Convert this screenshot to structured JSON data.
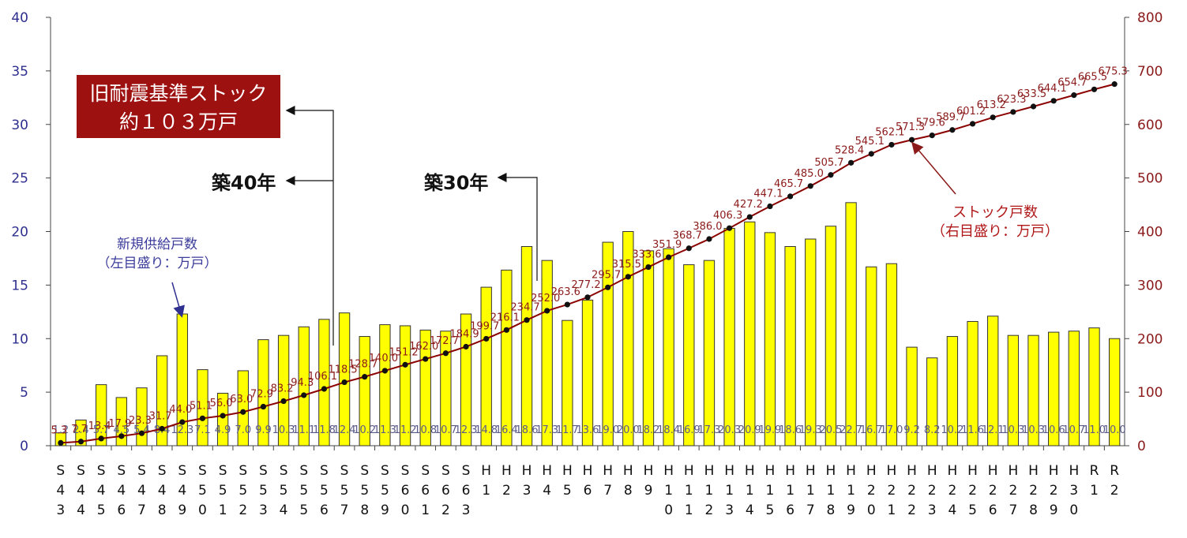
{
  "chart_data": {
    "type": "bar+line",
    "categories": [
      [
        "S",
        "4",
        "3"
      ],
      [
        "S",
        "4",
        "4"
      ],
      [
        "S",
        "4",
        "5"
      ],
      [
        "S",
        "4",
        "6"
      ],
      [
        "S",
        "4",
        "7"
      ],
      [
        "S",
        "4",
        "8"
      ],
      [
        "S",
        "4",
        "9"
      ],
      [
        "S",
        "5",
        "0"
      ],
      [
        "S",
        "5",
        "1"
      ],
      [
        "S",
        "5",
        "2"
      ],
      [
        "S",
        "5",
        "3"
      ],
      [
        "S",
        "5",
        "4"
      ],
      [
        "S",
        "5",
        "5"
      ],
      [
        "S",
        "5",
        "6"
      ],
      [
        "S",
        "5",
        "7"
      ],
      [
        "S",
        "5",
        "8"
      ],
      [
        "S",
        "5",
        "9"
      ],
      [
        "S",
        "6",
        "0"
      ],
      [
        "S",
        "6",
        "1"
      ],
      [
        "S",
        "6",
        "2"
      ],
      [
        "S",
        "6",
        "3"
      ],
      [
        "H",
        "1",
        ""
      ],
      [
        "H",
        "2",
        ""
      ],
      [
        "H",
        "3",
        ""
      ],
      [
        "H",
        "4",
        ""
      ],
      [
        "H",
        "5",
        ""
      ],
      [
        "H",
        "6",
        ""
      ],
      [
        "H",
        "7",
        ""
      ],
      [
        "H",
        "8",
        ""
      ],
      [
        "H",
        "9",
        ""
      ],
      [
        "H",
        "1",
        "0"
      ],
      [
        "H",
        "1",
        "1"
      ],
      [
        "H",
        "1",
        "2"
      ],
      [
        "H",
        "1",
        "3"
      ],
      [
        "H",
        "1",
        "4"
      ],
      [
        "H",
        "1",
        "5"
      ],
      [
        "H",
        "1",
        "6"
      ],
      [
        "H",
        "1",
        "7"
      ],
      [
        "H",
        "1",
        "8"
      ],
      [
        "H",
        "1",
        "9"
      ],
      [
        "H",
        "2",
        "0"
      ],
      [
        "H",
        "2",
        "1"
      ],
      [
        "H",
        "2",
        "2"
      ],
      [
        "H",
        "2",
        "3"
      ],
      [
        "H",
        "2",
        "4"
      ],
      [
        "H",
        "2",
        "5"
      ],
      [
        "H",
        "2",
        "6"
      ],
      [
        "H",
        "2",
        "7"
      ],
      [
        "H",
        "2",
        "8"
      ],
      [
        "H",
        "2",
        "9"
      ],
      [
        "H",
        "3",
        "0"
      ],
      [
        "R",
        "1",
        ""
      ],
      [
        "R",
        "2",
        ""
      ]
    ],
    "series": [
      {
        "name": "新規供給戸数",
        "kind": "bar",
        "axis": "left",
        "color": "#ffff00",
        "values": [
          1.2,
          2.4,
          5.7,
          4.5,
          5.4,
          8.4,
          12.3,
          7.1,
          4.9,
          7.0,
          9.9,
          10.3,
          11.1,
          11.8,
          12.4,
          10.2,
          11.3,
          11.2,
          10.8,
          10.7,
          12.3,
          14.8,
          16.4,
          18.6,
          17.3,
          11.7,
          13.6,
          19.0,
          20.0,
          18.2,
          18.4,
          16.9,
          17.3,
          20.3,
          20.9,
          19.9,
          18.6,
          19.3,
          20.5,
          22.7,
          16.7,
          17.0,
          9.2,
          8.2,
          10.2,
          11.6,
          12.1,
          10.3,
          10.3,
          10.6,
          10.7,
          11.0,
          10.0
        ],
        "labels": [
          "1.2",
          "2.4",
          "5.7",
          "4.5",
          "5.4",
          "8.4",
          "12.3",
          "7.1",
          "4.9",
          "7.0",
          "9.9",
          "10.3",
          "11.1",
          "11.8",
          "12.4",
          "10.2",
          "11.3",
          "11.2",
          "10.8",
          "10.7",
          "12.3",
          "14.8",
          "16.4",
          "18.6",
          "17.3",
          "11.7",
          "13.6",
          "19.0",
          "20.0",
          "18.2",
          "18.4",
          "16.9",
          "17.3",
          "20.3",
          "20.9",
          "19.9",
          "18.6",
          "19.3",
          "20.5",
          "22.7",
          "16.7",
          "17.0",
          "9.2",
          "8.2",
          "10.2",
          "11.6",
          "12.1",
          "10.3",
          "10.3",
          "10.6",
          "10.7",
          "11.0",
          "10.0"
        ]
      },
      {
        "name": "ストック戸数",
        "kind": "line",
        "axis": "right",
        "color": "#8b0000",
        "values": [
          5.3,
          7.7,
          13.4,
          17.9,
          23.3,
          31.7,
          44.0,
          51.1,
          56.0,
          63.0,
          72.9,
          83.2,
          94.3,
          106.1,
          118.5,
          128.7,
          140.0,
          151.2,
          162.0,
          172.7,
          184.9,
          199.7,
          216.1,
          234.7,
          252.0,
          263.6,
          277.2,
          295.7,
          315.5,
          333.6,
          351.9,
          368.7,
          386.0,
          406.3,
          427.2,
          447.1,
          465.7,
          485.0,
          505.7,
          528.4,
          545.1,
          562.1,
          571.3,
          579.6,
          589.7,
          601.2,
          613.2,
          623.3,
          633.5,
          644.1,
          654.7,
          665.5,
          675.3
        ],
        "labels": [
          "5.3",
          "7.7",
          "13.4",
          "17.9",
          "23.3",
          "31.7",
          "44.0",
          "51.1",
          "56.0",
          "63.0",
          "72.9",
          "83.2",
          "94.3",
          "106.1",
          "118.5",
          "128.7",
          "140.0",
          "151.2",
          "162.0",
          "172.7",
          "184.9",
          "199.7",
          "216.1",
          "234.7",
          "252.0",
          "263.6",
          "277.2",
          "295.7",
          "315.5",
          "333.6",
          "351.9",
          "368.7",
          "386.0",
          "406.3",
          "427.2",
          "447.1",
          "465.7",
          "485.0",
          "505.7",
          "528.4",
          "545.1",
          "562.1",
          "571.3",
          "579.6",
          "589.7",
          "601.2",
          "613.2",
          "623.3",
          "633.5",
          "644.1",
          "654.7",
          "665.5",
          "675.3"
        ]
      }
    ],
    "ylim_left": [
      0,
      40
    ],
    "yticks_left": [
      "0",
      "5",
      "10",
      "15",
      "20",
      "25",
      "30",
      "35",
      "40"
    ],
    "ylim_right": [
      0,
      800
    ],
    "yticks_right": [
      "0",
      "100",
      "200",
      "300",
      "400",
      "500",
      "600",
      "700",
      "800"
    ],
    "grid": false
  },
  "annotations": {
    "old_standard_line1": "旧耐震基準ストック",
    "old_standard_line2": "約１０３万戸",
    "age40": "築40年",
    "age30": "築30年",
    "bar_legend_line1": "新規供給戸数",
    "bar_legend_line2": "（左目盛り：万戸）",
    "line_legend_line1": "ストック戸数",
    "line_legend_line2": "（右目盛り：万戸）"
  }
}
